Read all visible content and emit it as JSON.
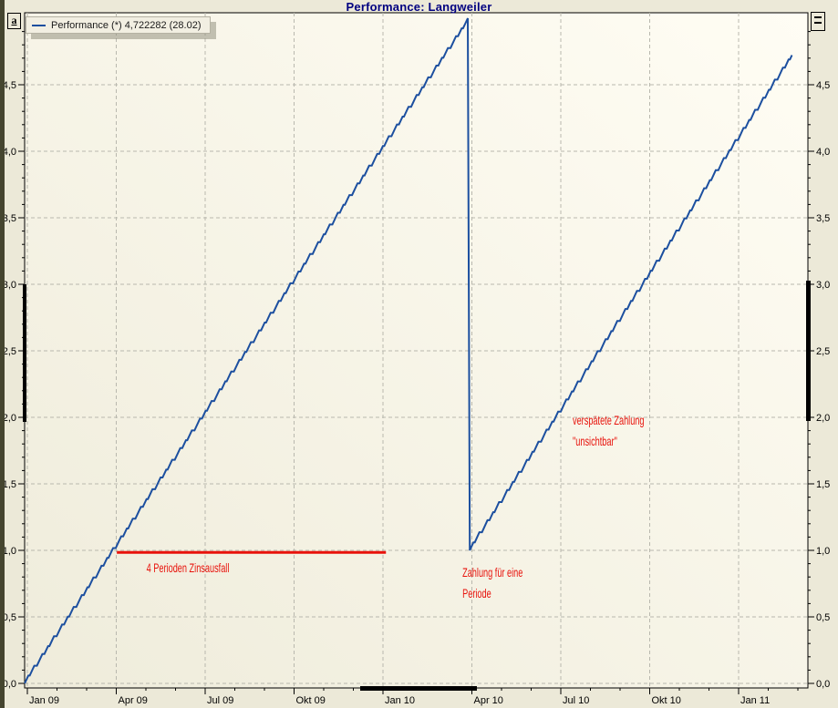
{
  "window": {
    "title": "Performance: Langweiler",
    "scale_icon_letter": "a"
  },
  "legend": {
    "label": "Performance (*) 4,722282 (28.02)",
    "series_color": "#1c4f9f"
  },
  "colors": {
    "title": "#000080",
    "series_blue": "#1c4f9f",
    "annotation_red": "#e8120b",
    "grid": "#b9b8ae",
    "axis": "#000000",
    "bg_outer": "#ece9d8",
    "plot_gradient_from": "#efecdb",
    "plot_gradient_to": "#fffdf4"
  },
  "chart_data": {
    "type": "line",
    "title": "Performance: Langweiler",
    "x_unit": "months since Jan 2009",
    "xlim_months": [
      -0.09,
      26.34
    ],
    "ylim": [
      -0.034,
      5.07
    ],
    "grid": "dashed",
    "x_ticks": [
      {
        "m": 0,
        "label": "Jan 09"
      },
      {
        "m": 3,
        "label": "Apr 09"
      },
      {
        "m": 6,
        "label": "Jul 09"
      },
      {
        "m": 9,
        "label": "Okt 09"
      },
      {
        "m": 12,
        "label": "Jan 10"
      },
      {
        "m": 15,
        "label": "Apr 10"
      },
      {
        "m": 18,
        "label": "Jul 10"
      },
      {
        "m": 21,
        "label": "Okt 10"
      },
      {
        "m": 24,
        "label": "Jan 11"
      }
    ],
    "x_minor_tick_every_months": 1,
    "y_ticks": [
      {
        "v": 0.0,
        "label": "0,0"
      },
      {
        "v": 0.5,
        "label": "0,5"
      },
      {
        "v": 1.0,
        "label": "1,0"
      },
      {
        "v": 1.5,
        "label": "1,5"
      },
      {
        "v": 2.0,
        "label": "2,0"
      },
      {
        "v": 2.5,
        "label": "2,5"
      },
      {
        "v": 3.0,
        "label": "3,0"
      },
      {
        "v": 3.5,
        "label": "3,5"
      },
      {
        "v": 4.0,
        "label": "4,0"
      },
      {
        "v": 4.5,
        "label": "4,5"
      }
    ],
    "y_minor_tick_every": 0.1,
    "series": [
      {
        "name": "Performance (*) 4,722282 (28.02)",
        "color": "#1c4f9f",
        "render": "stepped-daily-accrual",
        "keypoints": [
          {
            "m": -0.09,
            "value": 0.0
          },
          {
            "m": 14.86,
            "value": 5.0
          },
          {
            "m": 14.93,
            "value": 1.0
          },
          {
            "m": 25.8,
            "value": 4.722282
          }
        ],
        "last_value": "4,722282",
        "last_value_date": "28.02"
      }
    ],
    "annotations": {
      "color": "#e8120b",
      "red_line": {
        "value": 0.985,
        "m_from": 3.02,
        "m_to": 12.1
      },
      "texts": [
        {
          "m": 4.02,
          "v_top": 0.911,
          "lines": [
            "4 Perioden Zinsausfall"
          ]
        },
        {
          "m": 14.68,
          "v_top": 0.877,
          "lines": [
            "Zahlung für eine",
            "Periode"
          ]
        },
        {
          "m": 18.4,
          "v_top": 2.02,
          "lines": [
            "verspätete Zahlung",
            "\"unsichtbar\""
          ]
        }
      ]
    }
  }
}
